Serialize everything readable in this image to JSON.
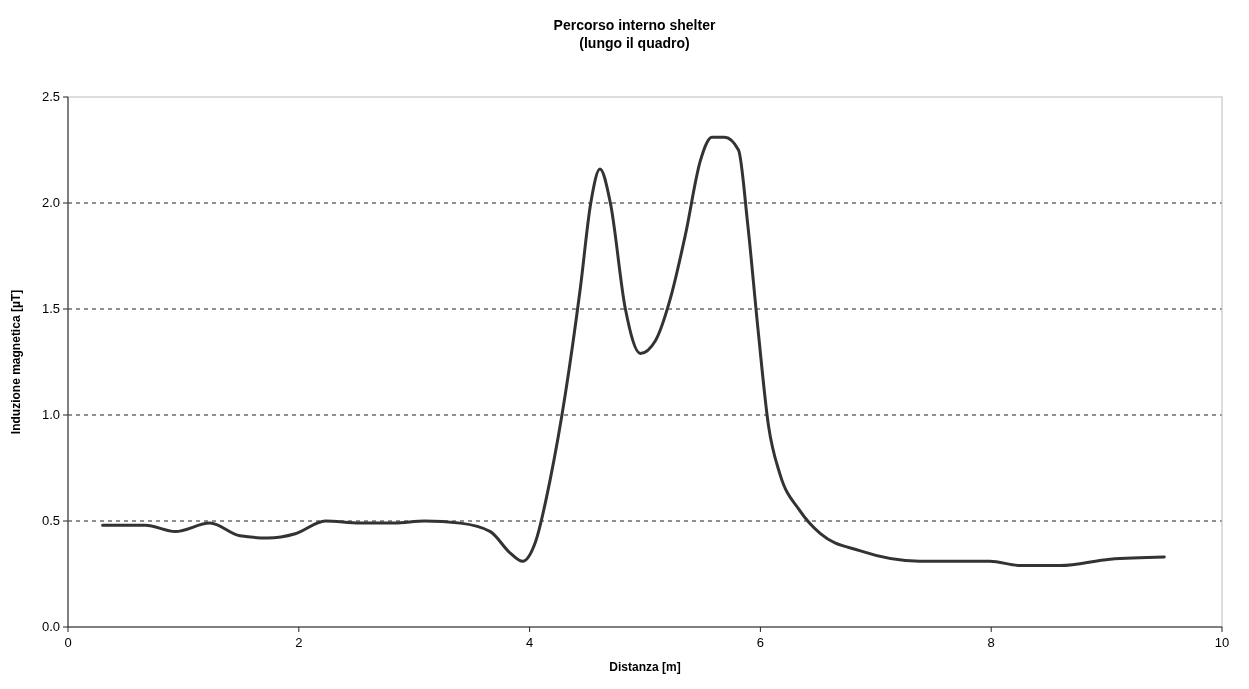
{
  "chart_data": {
    "type": "line",
    "title": "Percorso interno shelter",
    "subtitle": "(lungo il quadro)",
    "xlabel": "Distanza [m]",
    "ylabel": "Induzione magnetica [µT]",
    "xlim": [
      0,
      10
    ],
    "xticks": [
      0,
      2,
      4,
      6,
      8,
      10
    ],
    "ylim": [
      0,
      2.5
    ],
    "yticks": [
      {
        "value": 0,
        "label": "0.0"
      },
      {
        "value": 0.5,
        "label": "0.5"
      },
      {
        "value": 1,
        "label": "1.0"
      },
      {
        "value": 1.5,
        "label": "1.5"
      },
      {
        "value": 2,
        "label": "2.0"
      },
      {
        "value": 2.5,
        "label": "2.5"
      }
    ],
    "grid": "y",
    "marker": "none",
    "line_style": "solid",
    "series": [
      {
        "color": "#333333",
        "x": [
          0.3,
          0.67,
          0.93,
          1.23,
          1.49,
          1.73,
          1.97,
          2.23,
          2.53,
          2.83,
          3.09,
          3.4,
          3.66,
          3.83,
          3.94,
          4.05,
          4.18,
          4.31,
          4.44,
          4.53,
          4.61,
          4.7,
          4.83,
          4.96,
          5.09,
          5.22,
          5.35,
          5.48,
          5.58,
          5.69,
          5.81,
          5.89,
          5.98,
          6.07,
          6.17,
          6.34,
          6.52,
          6.86,
          7.38,
          7.99,
          8.25,
          8.6,
          9.03,
          9.5
        ],
        "values": [
          0.48,
          0.48,
          0.45,
          0.49,
          0.43,
          0.42,
          0.44,
          0.5,
          0.49,
          0.49,
          0.5,
          0.49,
          0.45,
          0.35,
          0.31,
          0.4,
          0.7,
          1.1,
          1.6,
          2.0,
          2.16,
          2.0,
          1.5,
          1.29,
          1.35,
          1.55,
          1.85,
          2.2,
          2.31,
          2.31,
          2.25,
          1.9,
          1.4,
          0.95,
          0.72,
          0.55,
          0.44,
          0.36,
          0.31,
          0.31,
          0.29,
          0.29,
          0.32,
          0.33
        ]
      }
    ]
  }
}
